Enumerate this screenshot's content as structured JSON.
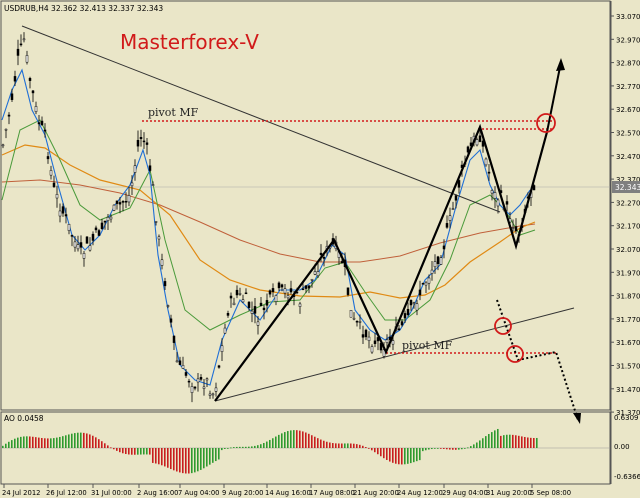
{
  "header": {
    "symbol_line": "USDRUB,H4  32.362 32.413 32.337 32.343"
  },
  "title": "Masterforex-V",
  "annotations": {
    "pivot_top": "pivot MF",
    "pivot_bottom": "pivot MF"
  },
  "price_axis": {
    "ticks": [
      "33.070",
      "32.970",
      "32.870",
      "32.770",
      "32.670",
      "32.570",
      "32.470",
      "32.370",
      "32.270",
      "32.170",
      "32.070",
      "31.970",
      "31.870",
      "31.770",
      "31.670",
      "31.570",
      "31.470",
      "31.370"
    ],
    "current_price": "32.343"
  },
  "oscillator": {
    "label": "AO 0.0458",
    "ticks": [
      "0.6309",
      "0.00",
      "-0.6366"
    ]
  },
  "time_axis": {
    "labels": [
      "24 Jul 2012",
      "26 Jul 12:00",
      "31 Jul 00:00",
      "2 Aug 16:00",
      "7 Aug 04:00",
      "9 Aug 20:00",
      "14 Aug 16:00",
      "17 Aug 08:00",
      "21 Aug 20:00",
      "24 Aug 12:00",
      "29 Aug 04:00",
      "31 Aug 20:00",
      "5 Sep 08:00"
    ]
  },
  "colors": {
    "background": "#eae6c8",
    "candle": "#000000",
    "ma_fast": "#1f6fd6",
    "ma_mid": "#4a9a3a",
    "ma_slow": "#e08a14",
    "ma_long": "#c0603a",
    "pivot_line": "#d11a1a",
    "title": "#d11a1a",
    "ao_up": "#2e9a2e",
    "ao_down": "#c81e1e",
    "current_price_bg": "#7f7f7f"
  },
  "chart_data": {
    "type": "candlestick",
    "timeframe": "H4",
    "y_range": [
      31.37,
      33.07
    ],
    "zigzag_pattern": {
      "description": "black zigzag wave lines",
      "points": [
        {
          "time": "7 Aug 04:00",
          "price": 31.42
        },
        {
          "time": "17 Aug 08:00",
          "price": 32.12
        },
        {
          "time": "21 Aug 20:00",
          "price": 31.61
        },
        {
          "time": "29 Aug 04:00",
          "price": 32.6
        },
        {
          "time": "31 Aug 20:00",
          "price": 32.08
        },
        {
          "time": "5 Sep 08:00",
          "price": 32.87
        }
      ]
    },
    "pivot_levels": [
      {
        "label": "pivot MF",
        "price": 32.63
      },
      {
        "label": "pivot MF",
        "price": 31.61
      }
    ],
    "current_price": 32.343
  }
}
